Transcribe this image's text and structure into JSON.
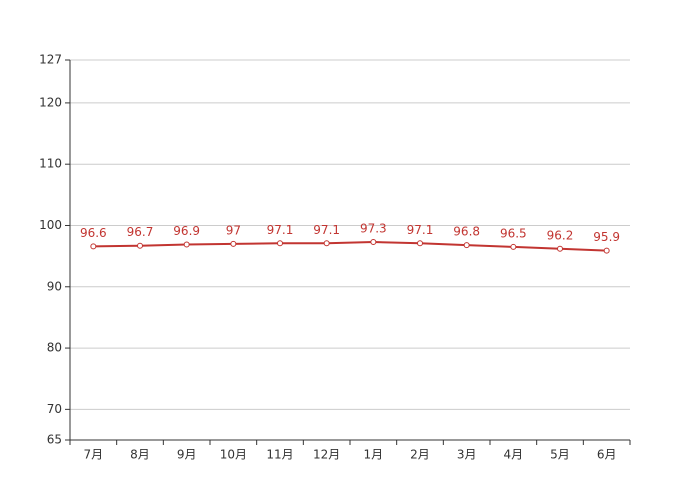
{
  "chart_data": {
    "type": "line",
    "categories": [
      "7月",
      "8月",
      "9月",
      "10月",
      "11月",
      "12月",
      "1月",
      "2月",
      "3月",
      "4月",
      "5月",
      "6月"
    ],
    "values": [
      96.6,
      96.7,
      96.9,
      97,
      97.1,
      97.1,
      97.3,
      97.1,
      96.8,
      96.5,
      96.2,
      95.9
    ],
    "color": "#c23531",
    "ylim": [
      65,
      127
    ],
    "yticks": [
      65,
      70,
      80,
      90,
      100,
      110,
      120,
      127
    ],
    "grid": true
  }
}
